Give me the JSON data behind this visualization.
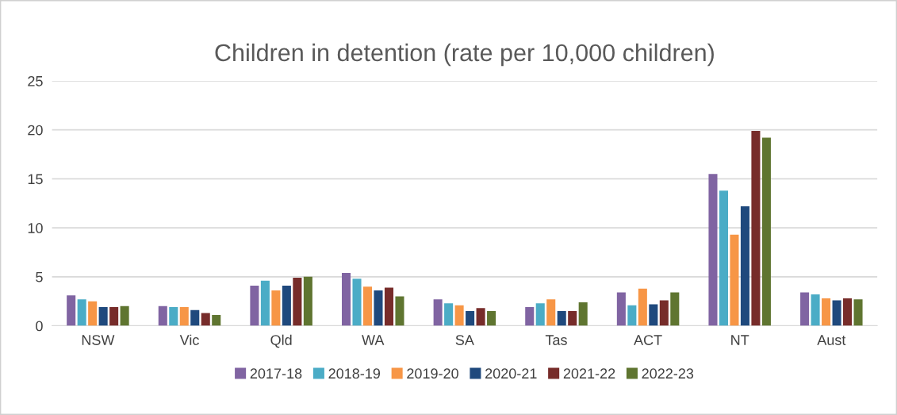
{
  "chart_data": {
    "type": "bar",
    "title": "Children in detention (rate per 10,000 children)",
    "categories": [
      "NSW",
      "Vic",
      "Qld",
      "WA",
      "SA",
      "Tas",
      "ACT",
      "NT",
      "Aust"
    ],
    "series": [
      {
        "name": "2017-18",
        "color": "#8064a2",
        "values": [
          3.1,
          2.0,
          4.1,
          5.4,
          2.7,
          1.9,
          3.4,
          15.5,
          3.4
        ]
      },
      {
        "name": "2018-19",
        "color": "#4bacc6",
        "values": [
          2.7,
          1.9,
          4.6,
          4.8,
          2.3,
          2.3,
          2.1,
          13.8,
          3.2
        ]
      },
      {
        "name": "2019-20",
        "color": "#f79646",
        "values": [
          2.5,
          1.9,
          3.6,
          4.0,
          2.1,
          2.7,
          3.8,
          9.3,
          2.8
        ]
      },
      {
        "name": "2020-21",
        "color": "#1f497d",
        "values": [
          1.9,
          1.6,
          4.1,
          3.6,
          1.5,
          1.5,
          2.2,
          12.2,
          2.6
        ]
      },
      {
        "name": "2021-22",
        "color": "#772c2a",
        "values": [
          1.9,
          1.3,
          4.9,
          3.9,
          1.8,
          1.5,
          2.6,
          19.9,
          2.8
        ]
      },
      {
        "name": "2022-23",
        "color": "#5f7530",
        "values": [
          2.0,
          1.1,
          5.0,
          3.0,
          1.5,
          2.4,
          3.4,
          19.2,
          2.7
        ]
      }
    ],
    "ylim": [
      0,
      25
    ],
    "yticks": [
      0,
      5,
      10,
      15,
      20,
      25
    ],
    "grid": "y",
    "legend": "bottom"
  }
}
